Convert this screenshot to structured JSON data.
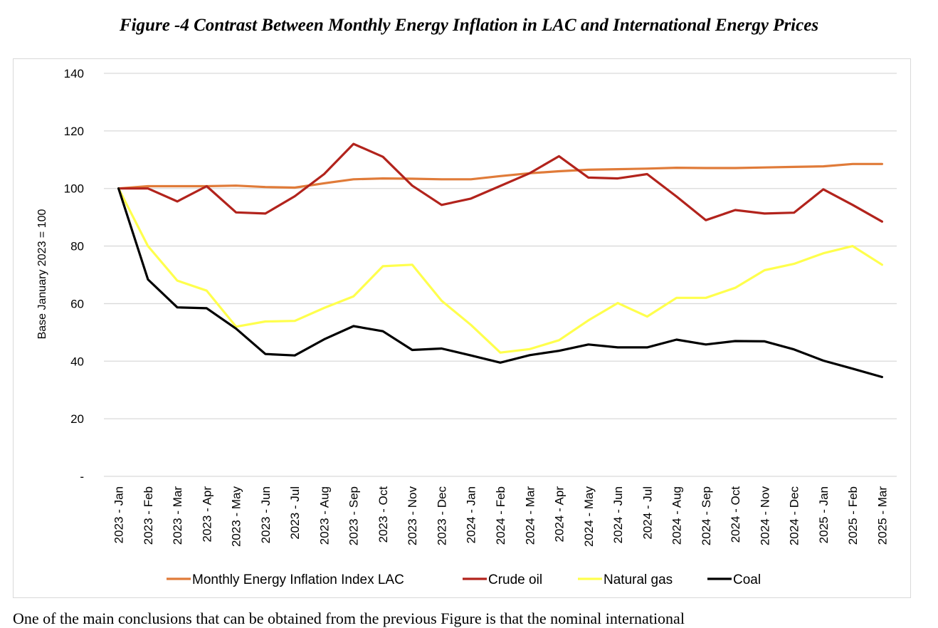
{
  "figure_title": "Figure -4 Contrast Between Monthly Energy Inflation in LAC and International Energy Prices",
  "body_text": "One of the main conclusions that can be obtained from the previous Figure is that the nominal international",
  "chart_data": {
    "type": "line",
    "title": "",
    "xlabel": "",
    "ylabel": "Base January 2023 = 100",
    "ylim": [
      0,
      140
    ],
    "yticks": [
      0,
      20,
      40,
      60,
      80,
      100,
      120,
      140
    ],
    "ytick_labels": [
      "-",
      "20",
      "40",
      "60",
      "80",
      "100",
      "120",
      "140"
    ],
    "grid": true,
    "legend_position": "bottom",
    "categories": [
      "2023 - Jan",
      "2023 - Feb",
      "2023 - Mar",
      "2023 - Apr",
      "2023 - May",
      "2023 - Jun",
      "2023 - Jul",
      "2023 - Aug",
      "2023 - Sep",
      "2023 - Oct",
      "2023 - Nov",
      "2023 - Dec",
      "2024 - Jan",
      "2024 - Feb",
      "2024 - Mar",
      "2024 - Apr",
      "2024 - May",
      "2024 - Jun",
      "2024 - Jul",
      "2024 - Aug",
      "2024 - Sep",
      "2024 - Oct",
      "2024 - Nov",
      "2024 - Dec",
      "2025 - Jan",
      "2025 - Feb",
      "2025 - Mar"
    ],
    "series": [
      {
        "name": "Monthly Energy Inflation Index LAC",
        "color": "#e07b39",
        "values": [
          100,
          100.8,
          100.8,
          100.8,
          101,
          100.5,
          100.3,
          101.8,
          103.2,
          103.5,
          103.4,
          103.2,
          103.2,
          104.3,
          105.3,
          106,
          106.5,
          106.7,
          106.9,
          107.2,
          107.1,
          107.1,
          107.3,
          107.5,
          107.7,
          108.5,
          108.5
        ]
      },
      {
        "name": "Crude oil",
        "color": "#b2231c",
        "values": [
          100,
          100,
          95.5,
          100.8,
          91.7,
          91.3,
          97.3,
          105,
          115.5,
          111,
          101,
          94.3,
          96.5,
          100.9,
          105.3,
          111.2,
          103.8,
          103.5,
          105,
          97.2,
          89,
          92.5,
          91.3,
          91.6,
          99.7,
          94.3,
          88.5
        ]
      },
      {
        "name": "Natural gas",
        "color": "#ffff4d",
        "values": [
          100,
          80,
          68,
          64.5,
          52,
          53.8,
          54,
          58.5,
          62.5,
          73,
          73.5,
          61,
          52.6,
          43,
          44.2,
          47.3,
          54.2,
          60.2,
          55.5,
          62,
          62,
          65.5,
          71.6,
          73.8,
          77.5,
          80,
          73.5
        ]
      },
      {
        "name": "Coal",
        "color": "#000000",
        "values": [
          100,
          68.4,
          58.7,
          58.4,
          51.3,
          42.5,
          42,
          47.6,
          52.2,
          50.4,
          43.9,
          44.4,
          42,
          39.5,
          42.1,
          43.6,
          45.8,
          44.8,
          44.8,
          47.5,
          45.8,
          47,
          46.9,
          44.1,
          40.2,
          37.4,
          34.5
        ]
      }
    ]
  }
}
